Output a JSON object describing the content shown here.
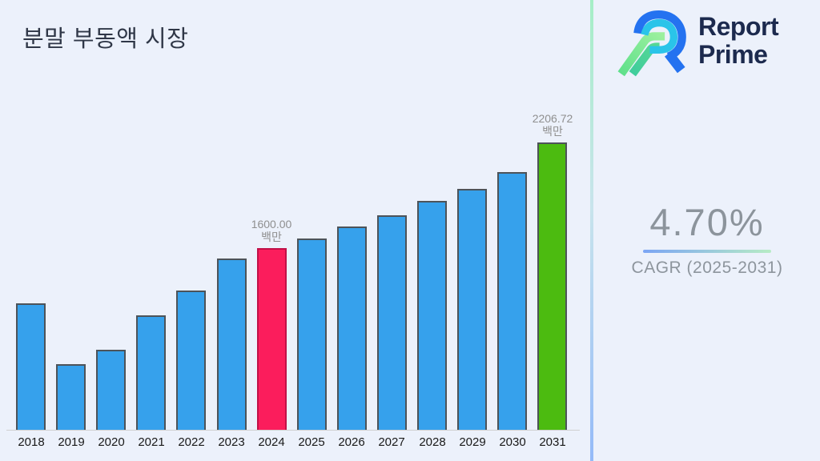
{
  "page": {
    "title": "분말 부동액 시장",
    "background": "#ECF1FB"
  },
  "logo": {
    "line1": "Report",
    "line2": "Prime",
    "text_color": "#1C2A4E"
  },
  "cagr": {
    "value": "4.70%",
    "label": "CAGR (2025-2031)"
  },
  "colors": {
    "bar_blue": "#36A1EC",
    "bar_border": "#4D5359",
    "highlight_pink": "#FB1D5C",
    "highlight_pink_border": "#C11048",
    "highlight_green": "#4CBB10",
    "divider_top": "#A5EEC6",
    "divider_bottom": "#94BAF8",
    "muted_text": "#8C949C",
    "annotation_text": "#8F8F8F"
  },
  "chart_data": {
    "type": "bar",
    "title": "분말 부동액 시장",
    "unit": "백만",
    "xlabel": "",
    "ylabel": "",
    "grid": false,
    "legend": "none",
    "categories": [
      "2018",
      "2019",
      "2020",
      "2021",
      "2022",
      "2023",
      "2024",
      "2025",
      "2026",
      "2027",
      "2028",
      "2029",
      "2030",
      "2031"
    ],
    "values": [
      1283,
      934,
      1016,
      1214,
      1356,
      1540,
      1600,
      1655,
      1724,
      1789,
      1871,
      1940,
      2037,
      2206.72
    ],
    "ylim": [
      557,
      2473
    ],
    "bar_color": "#36A1EC",
    "bar_border": "#4D5359",
    "highlighted_bars": [
      {
        "category": "2024",
        "color": "#FB1D5C",
        "border": "#C11048"
      },
      {
        "category": "2031",
        "color": "#4CBB10",
        "border": "#4D5359"
      }
    ],
    "annotations": [
      {
        "category": "2024",
        "value_label": "1600.00",
        "unit_label": "백만"
      },
      {
        "category": "2031",
        "value_label": "2206.72",
        "unit_label": "백만"
      }
    ]
  }
}
